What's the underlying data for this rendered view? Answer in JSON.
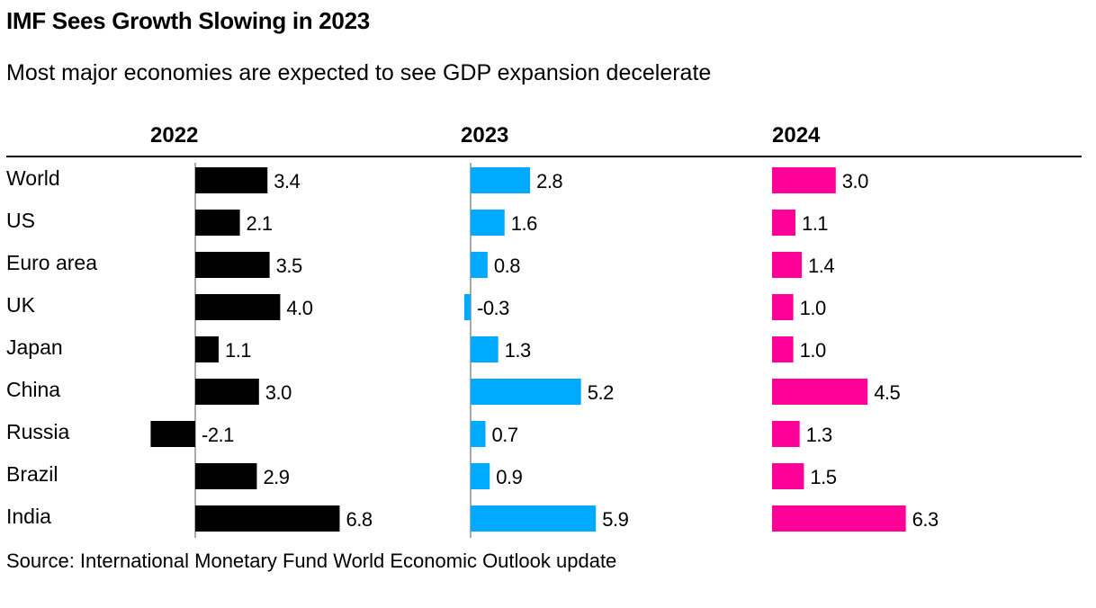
{
  "header": {
    "title": "IMF Sees Growth Slowing in 2023",
    "subtitle": "Most major economies are expected to see GDP expansion decelerate"
  },
  "footer": {
    "source": "Source: International Monetary Fund World Economic Outlook update"
  },
  "colors": {
    "2022": "#000000",
    "2023": "#00aaff",
    "2024": "#ff0099"
  },
  "chart_data": {
    "type": "bar",
    "orientation": "horizontal",
    "title": "IMF Sees Growth Slowing in 2023",
    "subtitle": "Most major economies are expected to see GDP expansion decelerate",
    "categories": [
      "World",
      "US",
      "Euro area",
      "UK",
      "Japan",
      "China",
      "Russia",
      "Brazil",
      "India"
    ],
    "series": [
      {
        "name": "2022",
        "values": [
          3.4,
          2.1,
          3.5,
          4.0,
          1.1,
          3.0,
          -2.1,
          2.9,
          6.8
        ],
        "labels": [
          "3.4",
          "2.1",
          "3.5",
          "4.0",
          "1.1",
          "3.0",
          "-2.1",
          "2.9",
          "6.8"
        ],
        "color": "#000000"
      },
      {
        "name": "2023",
        "values": [
          2.8,
          1.6,
          0.8,
          -0.3,
          1.3,
          5.2,
          0.7,
          0.9,
          5.9
        ],
        "labels": [
          "2.8",
          "1.6",
          "0.8",
          "-0.3",
          "1.3",
          "5.2",
          "0.7",
          "0.9",
          "5.9"
        ],
        "color": "#00aaff"
      },
      {
        "name": "2024",
        "values": [
          3.0,
          1.1,
          1.4,
          1.0,
          1.0,
          4.5,
          1.3,
          1.5,
          6.3
        ],
        "labels": [
          "3.0",
          "1.1",
          "1.4",
          "1.0",
          "1.0",
          "4.5",
          "1.3",
          "1.5",
          "6.3"
        ],
        "color": "#ff0099"
      }
    ],
    "grid": false,
    "legend": "column headers"
  }
}
